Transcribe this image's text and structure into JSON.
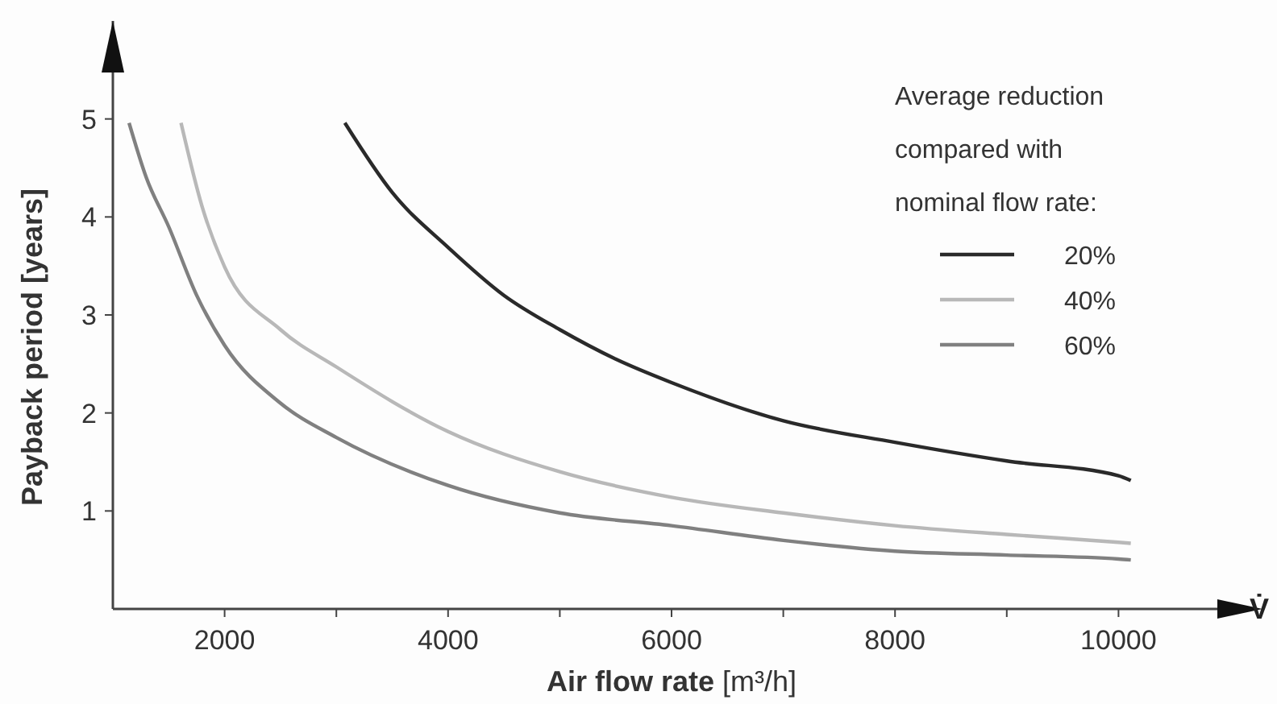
{
  "chart_data": {
    "type": "line",
    "xlabel": "Air flow rate [m³/h]",
    "ylabel": "Payback period [years]",
    "legend_title": "Average reduction compared with nominal flow rate:",
    "legend": "top right",
    "grid": false,
    "marker": "none",
    "line_style": "solid",
    "xlim": [
      1000,
      11000
    ],
    "ylim": [
      0,
      6
    ],
    "xticks": [
      2000,
      {
        "value": 3000,
        "label": null
      },
      4000,
      {
        "value": 5000,
        "label": null
      },
      6000,
      {
        "value": 7000,
        "label": null
      },
      8000,
      {
        "value": 9000,
        "label": null
      },
      10000
    ],
    "yticks": [
      1,
      2,
      3,
      4,
      5
    ],
    "annotations": [
      "V̇"
    ],
    "series": [
      {
        "name": "20%",
        "color": "#2a2a2a",
        "x": [
          3076,
          3500,
          4000,
          4500,
          5000,
          5500,
          6000,
          7000,
          8000,
          9000,
          10000,
          10110
        ],
        "values": [
          4.96,
          4.25,
          3.69,
          3.2,
          2.85,
          2.55,
          2.31,
          1.92,
          1.7,
          1.51,
          1.36,
          1.31
        ]
      },
      {
        "name": "40%",
        "color": "#b8b8b8",
        "x": [
          1610,
          1800,
          2000,
          2500,
          3000,
          4000,
          5000,
          6000,
          7000,
          8000,
          9000,
          10000,
          10110
        ],
        "values": [
          4.96,
          4.1,
          3.49,
          2.85,
          2.47,
          1.81,
          1.4,
          1.14,
          0.98,
          0.85,
          0.76,
          0.68,
          0.67
        ]
      },
      {
        "name": "60%",
        "color": "#808080",
        "x": [
          1145,
          1300,
          1500,
          1750,
          2000,
          2500,
          3000,
          4000,
          5000,
          6000,
          7000,
          8000,
          9000,
          10000,
          10110
        ],
        "values": [
          4.96,
          4.4,
          3.9,
          3.2,
          2.69,
          2.1,
          1.75,
          1.26,
          0.98,
          0.85,
          0.7,
          0.59,
          0.55,
          0.51,
          0.5
        ]
      }
    ]
  }
}
